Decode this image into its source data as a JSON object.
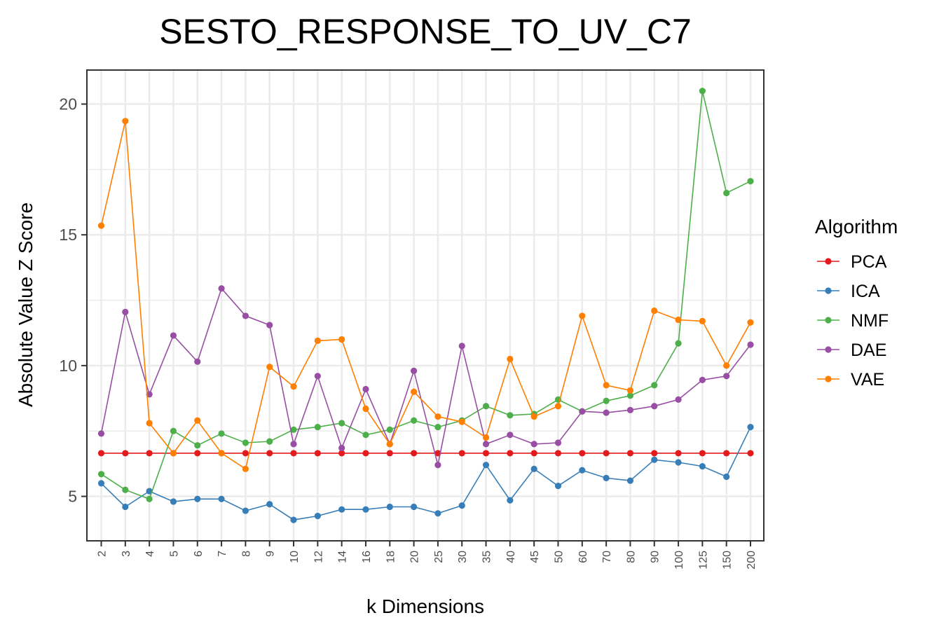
{
  "chart_data": {
    "type": "line",
    "title": "SESTO_RESPONSE_TO_UV_C7",
    "xlabel": "k Dimensions",
    "ylabel": "Absolute Value Z Score",
    "ylim": [
      3.3,
      21.3
    ],
    "yticks": [
      5,
      10,
      15,
      20
    ],
    "grid": true,
    "legend": {
      "title": "Algorithm",
      "placement": "right"
    },
    "categories": [
      "2",
      "3",
      "4",
      "5",
      "6",
      "7",
      "8",
      "9",
      "10",
      "12",
      "14",
      "16",
      "18",
      "20",
      "25",
      "30",
      "35",
      "40",
      "45",
      "50",
      "60",
      "70",
      "80",
      "90",
      "100",
      "125",
      "150",
      "200"
    ],
    "series": [
      {
        "name": "PCA",
        "color": "#E41A1C",
        "values": [
          6.65,
          6.65,
          6.65,
          6.65,
          6.65,
          6.65,
          6.65,
          6.65,
          6.65,
          6.65,
          6.65,
          6.65,
          6.65,
          6.65,
          6.65,
          6.65,
          6.65,
          6.65,
          6.65,
          6.65,
          6.65,
          6.65,
          6.65,
          6.65,
          6.65,
          6.65,
          6.65,
          6.65
        ]
      },
      {
        "name": "ICA",
        "color": "#377EB8",
        "values": [
          5.5,
          4.6,
          5.2,
          4.8,
          4.9,
          4.9,
          4.45,
          4.7,
          4.1,
          4.25,
          4.5,
          4.5,
          4.6,
          4.6,
          4.35,
          4.65,
          6.2,
          4.85,
          6.05,
          5.4,
          6.0,
          5.7,
          5.6,
          6.4,
          6.3,
          6.15,
          5.75,
          7.65
        ]
      },
      {
        "name": "NMF",
        "color": "#4DAF4A",
        "values": [
          5.85,
          5.25,
          4.9,
          7.5,
          6.95,
          7.4,
          7.05,
          7.1,
          7.55,
          7.65,
          7.8,
          7.35,
          7.55,
          7.9,
          7.65,
          7.9,
          8.45,
          8.1,
          8.15,
          8.7,
          8.25,
          8.65,
          8.85,
          9.25,
          10.85,
          20.5,
          16.6,
          17.05
        ]
      },
      {
        "name": "DAE",
        "color": "#984EA3",
        "values": [
          7.4,
          12.05,
          8.9,
          11.15,
          10.15,
          12.95,
          11.9,
          11.55,
          7.0,
          9.6,
          6.85,
          9.1,
          7.0,
          9.8,
          6.2,
          10.75,
          7.0,
          7.35,
          7.0,
          7.05,
          8.25,
          8.2,
          8.3,
          8.45,
          8.7,
          9.45,
          9.6,
          10.8
        ]
      },
      {
        "name": "VAE",
        "color": "#FF7F00",
        "values": [
          15.35,
          19.35,
          7.8,
          6.65,
          7.9,
          6.65,
          6.05,
          9.95,
          9.2,
          10.95,
          11.0,
          8.35,
          7.0,
          9.0,
          8.05,
          7.85,
          7.25,
          10.25,
          8.05,
          8.45,
          11.9,
          9.25,
          9.05,
          12.1,
          11.75,
          11.7,
          10.0,
          11.65
        ]
      }
    ]
  }
}
